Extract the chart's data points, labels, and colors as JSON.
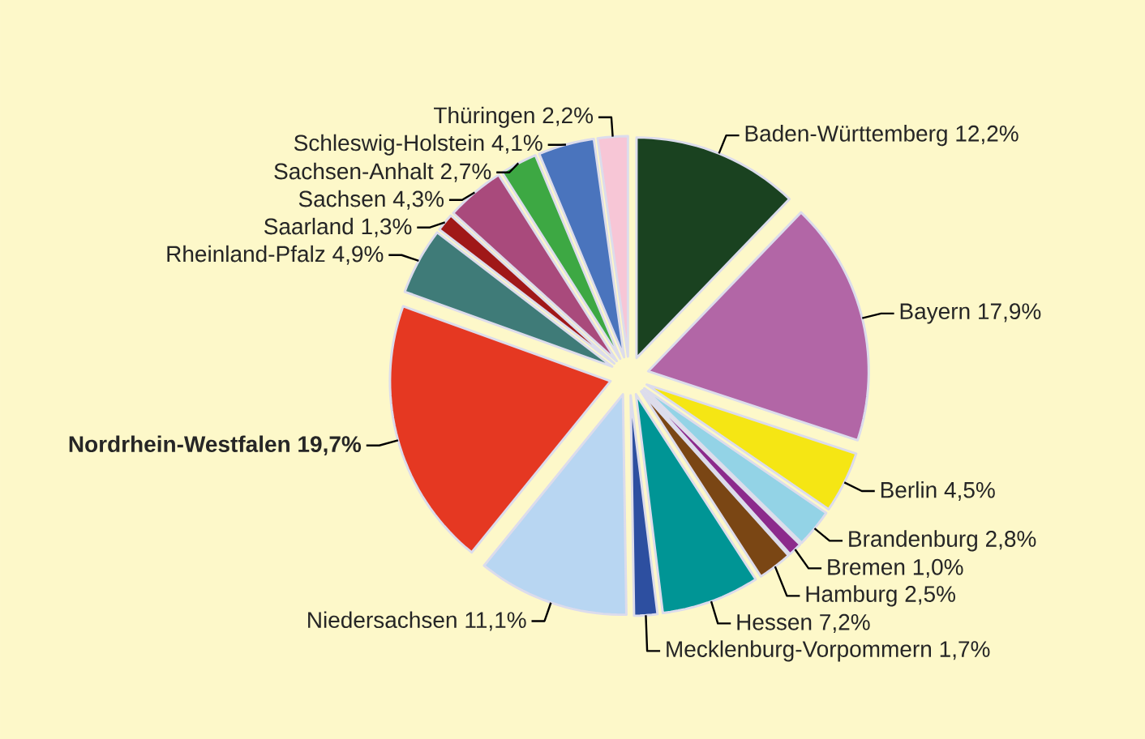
{
  "chart_data": {
    "type": "pie",
    "categories": [
      "Baden-Württemberg",
      "Bayern",
      "Berlin",
      "Brandenburg",
      "Bremen",
      "Hamburg",
      "Hessen",
      "Mecklenburg-Vorpommern",
      "Niedersachsen",
      "Nordrhein-Westfalen",
      "Rheinland-Pfalz",
      "Saarland",
      "Sachsen",
      "Sachsen-Anhalt",
      "Schleswig-Holstein",
      "Thüringen"
    ],
    "values": [
      12.2,
      17.9,
      4.5,
      2.8,
      1.0,
      2.5,
      7.2,
      1.7,
      11.1,
      19.7,
      4.9,
      1.3,
      4.3,
      2.7,
      4.1,
      2.2
    ],
    "value_labels": [
      "12,2%",
      "17,9%",
      "4,5%",
      "2,8%",
      "1,0%",
      "2,5%",
      "7,2%",
      "1,7%",
      "11,1%",
      "19,7%",
      "4,9%",
      "1,3%",
      "4,3%",
      "2,7%",
      "4,1%",
      "2,2%"
    ],
    "colors": [
      "#1a4220",
      "#b266a6",
      "#f5e614",
      "#93d3e6",
      "#8c2a8c",
      "#7a4614",
      "#009595",
      "#2d4fa0",
      "#b8d6f2",
      "#e53822",
      "#3f7b78",
      "#a01818",
      "#a94a7c",
      "#3da843",
      "#4a74bd",
      "#f7c6d6"
    ]
  }
}
